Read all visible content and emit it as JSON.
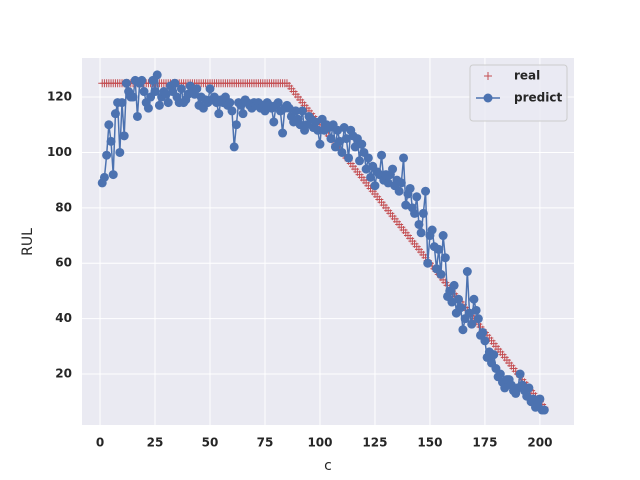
{
  "chart_data": {
    "type": "line",
    "xlabel": "c",
    "ylabel": "RUL",
    "xlim": [
      -8.2,
      215.5
    ],
    "ylim": [
      1.6,
      134.1
    ],
    "xticks": [
      0,
      25,
      50,
      75,
      100,
      125,
      150,
      175,
      200
    ],
    "yticks": [
      20,
      40,
      60,
      80,
      100,
      120
    ],
    "grid": true,
    "legend": "upper right",
    "x": [
      1,
      2,
      3,
      4,
      5,
      6,
      7,
      8,
      9,
      10,
      11,
      12,
      13,
      14,
      15,
      16,
      17,
      18,
      19,
      20,
      21,
      22,
      23,
      24,
      25,
      26,
      27,
      28,
      29,
      30,
      31,
      32,
      33,
      34,
      35,
      36,
      37,
      38,
      39,
      40,
      41,
      42,
      43,
      44,
      45,
      46,
      47,
      48,
      49,
      50,
      51,
      52,
      53,
      54,
      55,
      56,
      57,
      58,
      59,
      60,
      61,
      62,
      63,
      64,
      65,
      66,
      67,
      68,
      69,
      70,
      71,
      72,
      73,
      74,
      75,
      76,
      77,
      78,
      79,
      80,
      81,
      82,
      83,
      84,
      85,
      86,
      87,
      88,
      89,
      90,
      91,
      92,
      93,
      94,
      95,
      96,
      97,
      98,
      99,
      100,
      101,
      102,
      103,
      104,
      105,
      106,
      107,
      108,
      109,
      110,
      111,
      112,
      113,
      114,
      115,
      116,
      117,
      118,
      119,
      120,
      121,
      122,
      123,
      124,
      125,
      126,
      127,
      128,
      129,
      130,
      131,
      132,
      133,
      134,
      135,
      136,
      137,
      138,
      139,
      140,
      141,
      142,
      143,
      144,
      145,
      146,
      147,
      148,
      149,
      150,
      151,
      152,
      153,
      154,
      155,
      156,
      157,
      158,
      159,
      160,
      161,
      162,
      163,
      164,
      165,
      166,
      167,
      168,
      169,
      170,
      171,
      172,
      173,
      174,
      175,
      176,
      177,
      178,
      179,
      180,
      181,
      182,
      183,
      184,
      185,
      186,
      187,
      188,
      189,
      190,
      191,
      192,
      193,
      194,
      195,
      196,
      197,
      198,
      199,
      200,
      201,
      202
    ],
    "series": [
      {
        "name": "real",
        "color": "#c44e52",
        "marker": "+",
        "linestyle": "none",
        "values": [
          125,
          125,
          125,
          125,
          125,
          125,
          125,
          125,
          125,
          125,
          125,
          125,
          125,
          125,
          125,
          125,
          125,
          125,
          125,
          125,
          125,
          125,
          125,
          125,
          125,
          125,
          125,
          125,
          125,
          125,
          125,
          125,
          125,
          125,
          125,
          125,
          125,
          125,
          125,
          125,
          125,
          125,
          125,
          125,
          125,
          125,
          125,
          125,
          125,
          125,
          125,
          125,
          125,
          125,
          125,
          125,
          125,
          125,
          125,
          125,
          125,
          125,
          125,
          125,
          125,
          125,
          125,
          125,
          125,
          125,
          125,
          125,
          125,
          125,
          125,
          125,
          125,
          125,
          125,
          125,
          125,
          125,
          125,
          125,
          125,
          124,
          123,
          122,
          121,
          120,
          119,
          118,
          117,
          116,
          115,
          114,
          113,
          112,
          111,
          110,
          109,
          108,
          107,
          106,
          105,
          104,
          103,
          102,
          101,
          100,
          99,
          98,
          97,
          96,
          95,
          94,
          93,
          92,
          91,
          90,
          89,
          88,
          87,
          86,
          85,
          84,
          83,
          82,
          81,
          80,
          79,
          78,
          77,
          76,
          75,
          74,
          73,
          72,
          71,
          70,
          69,
          68,
          67,
          66,
          65,
          64,
          63,
          62,
          61,
          60,
          59,
          58,
          57,
          56,
          55,
          54,
          53,
          52,
          51,
          50,
          49,
          48,
          47,
          46,
          45,
          44,
          43,
          42,
          41,
          40,
          39,
          38,
          37,
          36,
          35,
          34,
          33,
          32,
          31,
          30,
          29,
          28,
          27,
          26,
          25,
          24,
          23,
          22,
          21,
          20,
          19,
          18,
          17,
          16,
          15,
          14,
          13,
          12,
          11,
          10,
          9,
          8
        ]
      },
      {
        "name": "predict",
        "color": "#4c72b0",
        "marker": "o",
        "linestyle": "-",
        "values": [
          89,
          91,
          99,
          110,
          104,
          92,
          114,
          118,
          100,
          118,
          106,
          125,
          122,
          120,
          120,
          126,
          113,
          125,
          126,
          122,
          118,
          116,
          120,
          126,
          122,
          128,
          117,
          120,
          122,
          121,
          118,
          124,
          122,
          125,
          120,
          118,
          123,
          118,
          119,
          121,
          124,
          122,
          121,
          123,
          117,
          120,
          116,
          119,
          118,
          123,
          119,
          120,
          118,
          114,
          119,
          118,
          120,
          117,
          118,
          115,
          102,
          110,
          118,
          117,
          114,
          119,
          118,
          117,
          116,
          118,
          117,
          118,
          116,
          117,
          115,
          118,
          117,
          116,
          111,
          117,
          118,
          115,
          107,
          116,
          117,
          116,
          113,
          111,
          115,
          112,
          110,
          115,
          108,
          110,
          113,
          112,
          109,
          111,
          108,
          103,
          112,
          108,
          110,
          109,
          105,
          110,
          102,
          108,
          104,
          100,
          109,
          105,
          98,
          108,
          106,
          102,
          105,
          97,
          103,
          100,
          94,
          98,
          91,
          95,
          88,
          93,
          92,
          99,
          90,
          92,
          89,
          92,
          94,
          88,
          90,
          86,
          89,
          98,
          81,
          85,
          87,
          80,
          78,
          84,
          74,
          71,
          78,
          86,
          60,
          70,
          72,
          66,
          58,
          65,
          56,
          70,
          62,
          48,
          50,
          46,
          52,
          42,
          47,
          44,
          36,
          40,
          57,
          42,
          38,
          47,
          43,
          40,
          34,
          35,
          32,
          26,
          28,
          24,
          27,
          22,
          19,
          20,
          17,
          15,
          18,
          18,
          16,
          14,
          13,
          15,
          20,
          16,
          14,
          12,
          15,
          10,
          11,
          8,
          9,
          11,
          7,
          7
        ]
      }
    ]
  }
}
